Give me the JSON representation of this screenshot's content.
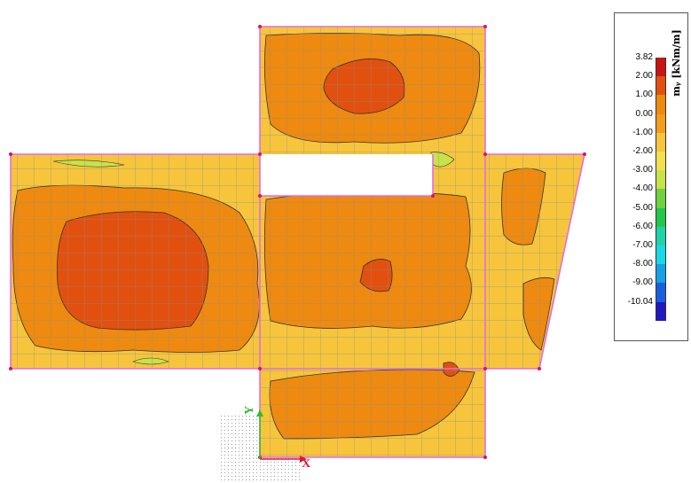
{
  "legend": {
    "title": "mᵧ [kNm/m]",
    "entries": [
      {
        "label": "3.82",
        "color": "#c81414"
      },
      {
        "label": "2.00",
        "color": "#e2500f"
      },
      {
        "label": "1.00",
        "color": "#ee8a10"
      },
      {
        "label": "0.00",
        "color": "#f39d1c"
      },
      {
        "label": "-1.00",
        "color": "#f6c53c"
      },
      {
        "label": "-2.00",
        "color": "#f3e04e"
      },
      {
        "label": "-3.00",
        "color": "#c8e24a"
      },
      {
        "label": "-4.00",
        "color": "#6fd040"
      },
      {
        "label": "-5.00",
        "color": "#22c64a"
      },
      {
        "label": "-6.00",
        "color": "#1ed3a8"
      },
      {
        "label": "-7.00",
        "color": "#18d8e4"
      },
      {
        "label": "-8.00",
        "color": "#16a0e6"
      },
      {
        "label": "-9.00",
        "color": "#1a5ee0"
      },
      {
        "label": "-10.04",
        "color": "#2018c0"
      }
    ]
  },
  "axes": {
    "x_label": "X",
    "y_label": "Y"
  },
  "colors": {
    "outline": "#e26de2",
    "mesh": "#8c8c8c",
    "contour": "#333333",
    "axis_x": "#e0192f",
    "axis_y": "#2bbf2b"
  }
}
